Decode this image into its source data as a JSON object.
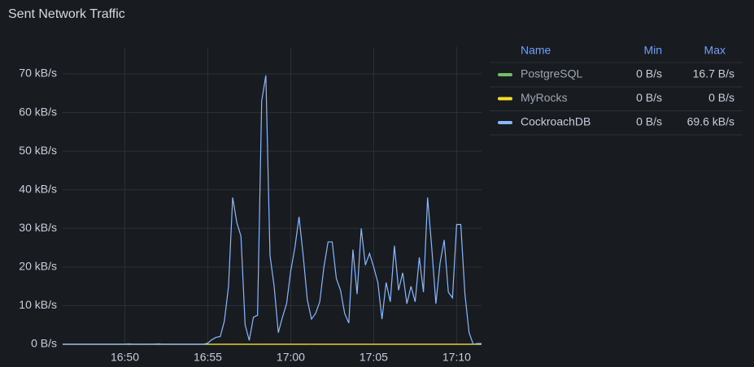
{
  "chart_data": {
    "type": "line",
    "title": "Sent Network Traffic",
    "x": [
      1006.25,
      1006.5,
      1006.75,
      1007,
      1007.25,
      1007.5,
      1007.75,
      1008,
      1008.25,
      1008.5,
      1008.75,
      1009,
      1009.25,
      1009.5,
      1009.75,
      1010,
      1010.25,
      1010.5,
      1010.75,
      1011,
      1011.25,
      1011.5,
      1011.75,
      1012,
      1012.25,
      1012.5,
      1012.75,
      1013,
      1013.25,
      1013.5,
      1013.75,
      1014,
      1014.25,
      1014.5,
      1014.75,
      1015,
      1015.25,
      1015.5,
      1015.75,
      1016,
      1016.25,
      1016.5,
      1016.75,
      1017,
      1017.25,
      1017.5,
      1017.75,
      1018,
      1018.25,
      1018.5,
      1018.75,
      1019,
      1019.25,
      1019.5,
      1019.75,
      1020,
      1020.25,
      1020.5,
      1020.75,
      1021,
      1021.25,
      1021.5,
      1021.75,
      1022,
      1022.25,
      1022.5,
      1022.75,
      1023,
      1023.25,
      1023.5,
      1023.75,
      1024,
      1024.25,
      1024.5,
      1024.75,
      1025,
      1025.25,
      1025.5,
      1025.75,
      1026,
      1026.25,
      1026.5,
      1026.75,
      1027,
      1027.25,
      1027.5,
      1027.75,
      1028,
      1028.25,
      1028.5,
      1028.75,
      1029,
      1029.25,
      1029.5,
      1029.75,
      1030,
      1030.25,
      1030.5,
      1030.75,
      1031,
      1031.25,
      1031.5
    ],
    "series": [
      {
        "name": "PostgreSQL",
        "color": "#73bf69",
        "legend_values": [
          "0 B/s",
          "16.7 B/s"
        ],
        "values": [
          0,
          0,
          0,
          0,
          0,
          0,
          0,
          0,
          0,
          0,
          0,
          0,
          0,
          0,
          0,
          0,
          0,
          0,
          0,
          0,
          0,
          0,
          0,
          0,
          0,
          0,
          0,
          0,
          0,
          0,
          0,
          0,
          0,
          0,
          0,
          0,
          0,
          0,
          0,
          0,
          0,
          0,
          0,
          0,
          0,
          0,
          0,
          0,
          0,
          0,
          0,
          0,
          0,
          0,
          0,
          0,
          0,
          0,
          0,
          0,
          0.0167,
          0,
          0,
          0,
          0,
          0,
          0,
          0,
          0,
          0,
          0,
          0,
          0,
          0,
          0,
          0,
          0,
          0,
          0,
          0,
          0,
          0,
          0,
          0,
          0,
          0,
          0,
          0,
          0,
          0,
          0,
          0,
          0,
          0,
          0,
          0,
          0,
          0,
          0,
          0,
          0,
          0
        ]
      },
      {
        "name": "MyRocks",
        "color": "#fade2a",
        "legend_values": [
          "0 B/s",
          "0 B/s"
        ],
        "values": [
          0,
          0,
          0,
          0,
          0,
          0,
          0,
          0,
          0,
          0,
          0,
          0,
          0,
          0,
          0,
          0,
          0,
          0,
          0,
          0,
          0,
          0,
          0,
          0,
          0,
          0,
          0,
          0,
          0,
          0,
          0,
          0,
          0,
          0,
          0,
          0,
          0,
          0,
          0,
          0,
          0,
          0,
          0,
          0,
          0,
          0,
          0,
          0,
          0,
          0,
          0,
          0,
          0,
          0,
          0,
          0,
          0,
          0,
          0,
          0,
          0,
          0,
          0,
          0,
          0,
          0,
          0,
          0,
          0,
          0,
          0,
          0,
          0,
          0,
          0,
          0,
          0,
          0,
          0,
          0,
          0,
          0,
          0,
          0,
          0,
          0,
          0,
          0,
          0,
          0,
          0,
          0,
          0,
          0,
          0,
          0,
          0,
          0,
          0,
          0,
          0,
          0
        ]
      },
      {
        "name": "CockroachDB",
        "color": "#8ab8ff",
        "legend_values": [
          "0 B/s",
          "69.6 kB/s"
        ],
        "values": [
          0,
          0,
          0,
          0,
          0,
          0,
          0,
          0,
          0,
          0,
          0,
          0,
          0,
          0,
          0,
          0,
          0.1,
          0,
          0,
          0,
          0,
          0,
          0,
          0.1,
          0,
          0,
          0,
          0,
          0,
          0,
          0,
          0,
          0,
          0,
          0,
          0.3,
          1.2,
          1.8,
          2,
          6,
          15,
          38,
          31.5,
          28,
          5,
          1,
          7,
          7.5,
          63,
          69.6,
          23,
          15,
          3,
          7,
          10.5,
          19,
          25,
          33,
          23,
          11.5,
          6.5,
          8,
          11,
          20,
          26.5,
          26.5,
          17,
          14,
          8,
          5.5,
          24.5,
          13,
          30,
          20.5,
          23.5,
          20,
          16,
          6.5,
          16,
          11,
          25.5,
          14,
          18.5,
          10.5,
          15,
          11,
          22.5,
          13.5,
          38,
          25,
          10.5,
          21,
          27,
          13.5,
          12,
          31,
          31,
          13,
          3,
          0,
          0.2,
          0.2
        ]
      }
    ],
    "xlim": [
      1006.25,
      1031.5
    ],
    "xticks": [
      {
        "value": 1010,
        "label": "16:50"
      },
      {
        "value": 1015,
        "label": "16:55"
      },
      {
        "value": 1020,
        "label": "17:00"
      },
      {
        "value": 1025,
        "label": "17:05"
      },
      {
        "value": 1030,
        "label": "17:10"
      }
    ],
    "ylim": [
      0,
      70
    ],
    "yticks": [
      {
        "value": 0,
        "label": "0 B/s"
      },
      {
        "value": 10,
        "label": "10 kB/s"
      },
      {
        "value": 20,
        "label": "20 kB/s"
      },
      {
        "value": 30,
        "label": "30 kB/s"
      },
      {
        "value": 40,
        "label": "40 kB/s"
      },
      {
        "value": 50,
        "label": "50 kB/s"
      },
      {
        "value": 60,
        "label": "60 kB/s"
      },
      {
        "value": 70,
        "label": "70 kB/s"
      }
    ],
    "grid": true,
    "legend": {
      "position": "right",
      "columns": [
        "Name",
        "Min",
        "Max"
      ]
    }
  }
}
